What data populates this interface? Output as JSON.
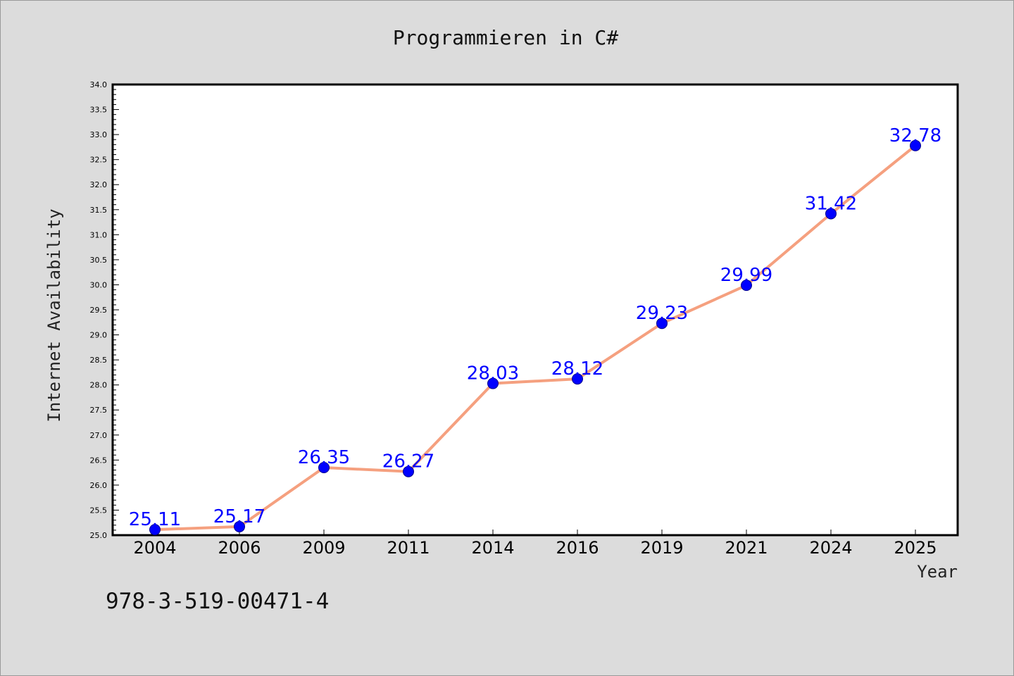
{
  "colors": {
    "background": "#dcdcdc",
    "plot_background": "#ffffff",
    "line": "#f5a07f",
    "marker": "#0000ff",
    "data_label": "#0000ff"
  },
  "footer_note": "978-3-519-00471-4",
  "chart_data": {
    "type": "line",
    "title": "Programmieren in C#",
    "xlabel": "Year",
    "ylabel": "Internet Availability",
    "categories": [
      "2004",
      "2006",
      "2009",
      "2011",
      "2014",
      "2016",
      "2019",
      "2021",
      "2024",
      "2025"
    ],
    "series": [
      {
        "values": [
          25.11,
          25.17,
          26.35,
          26.27,
          28.03,
          28.12,
          29.23,
          29.99,
          31.42,
          32.78
        ],
        "labels": [
          "25.11",
          "25.17",
          "26.35",
          "26.27",
          "28.03",
          "28.12",
          "29.23",
          "29.99",
          "31.42",
          "32.78"
        ]
      }
    ],
    "ylim": [
      25.0,
      34.0
    ],
    "yticks": [
      "25.0",
      "25.5",
      "26.0",
      "26.5",
      "27.0",
      "27.5",
      "28.0",
      "28.5",
      "29.0",
      "29.5",
      "30.0",
      "30.5",
      "31.0",
      "31.5",
      "32.0",
      "32.5",
      "33.0",
      "33.5",
      "34.0"
    ],
    "grid": false,
    "legend": "none"
  }
}
